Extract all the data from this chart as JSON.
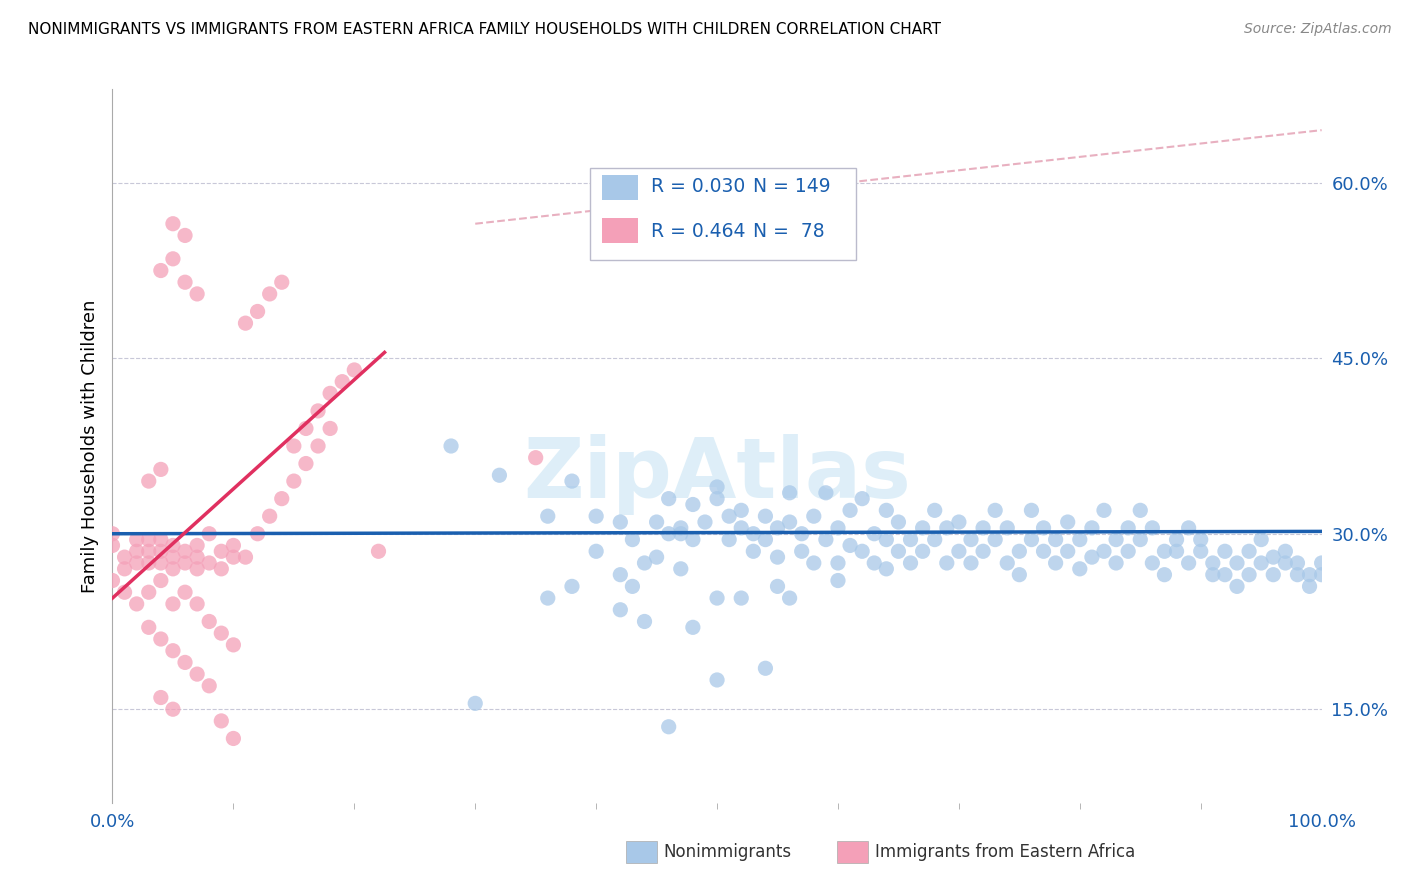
{
  "title": "NONIMMIGRANTS VS IMMIGRANTS FROM EASTERN AFRICA FAMILY HOUSEHOLDS WITH CHILDREN CORRELATION CHART",
  "source": "Source: ZipAtlas.com",
  "ylabel": "Family Households with Children",
  "yticks": [
    "15.0%",
    "30.0%",
    "45.0%",
    "60.0%"
  ],
  "ytick_vals": [
    0.15,
    0.3,
    0.45,
    0.6
  ],
  "xlim": [
    0.0,
    1.0
  ],
  "ylim": [
    0.07,
    0.68
  ],
  "legend_blue_r": "0.030",
  "legend_blue_n": "149",
  "legend_pink_r": "0.464",
  "legend_pink_n": "78",
  "legend_blue_label": "Nonimmigrants",
  "legend_pink_label": "Immigrants from Eastern Africa",
  "blue_color": "#a8c8e8",
  "pink_color": "#f4a0b8",
  "blue_line_color": "#1a5faf",
  "pink_line_color": "#e03060",
  "diag_line_color": "#e8b0c0",
  "r_n_color": "#1a5faf",
  "watermark": "ZipAtlas",
  "blue_dots": [
    [
      0.28,
      0.375
    ],
    [
      0.32,
      0.35
    ],
    [
      0.36,
      0.315
    ],
    [
      0.38,
      0.345
    ],
    [
      0.4,
      0.315
    ],
    [
      0.4,
      0.285
    ],
    [
      0.42,
      0.31
    ],
    [
      0.42,
      0.265
    ],
    [
      0.43,
      0.295
    ],
    [
      0.44,
      0.275
    ],
    [
      0.45,
      0.31
    ],
    [
      0.45,
      0.28
    ],
    [
      0.46,
      0.33
    ],
    [
      0.46,
      0.3
    ],
    [
      0.47,
      0.27
    ],
    [
      0.47,
      0.305
    ],
    [
      0.48,
      0.325
    ],
    [
      0.48,
      0.295
    ],
    [
      0.49,
      0.31
    ],
    [
      0.5,
      0.34
    ],
    [
      0.5,
      0.33
    ],
    [
      0.51,
      0.315
    ],
    [
      0.51,
      0.295
    ],
    [
      0.52,
      0.305
    ],
    [
      0.52,
      0.32
    ],
    [
      0.53,
      0.285
    ],
    [
      0.53,
      0.3
    ],
    [
      0.54,
      0.315
    ],
    [
      0.54,
      0.295
    ],
    [
      0.55,
      0.305
    ],
    [
      0.55,
      0.28
    ],
    [
      0.56,
      0.335
    ],
    [
      0.56,
      0.31
    ],
    [
      0.57,
      0.285
    ],
    [
      0.57,
      0.3
    ],
    [
      0.58,
      0.315
    ],
    [
      0.58,
      0.275
    ],
    [
      0.59,
      0.295
    ],
    [
      0.59,
      0.335
    ],
    [
      0.6,
      0.305
    ],
    [
      0.6,
      0.275
    ],
    [
      0.61,
      0.32
    ],
    [
      0.61,
      0.29
    ],
    [
      0.62,
      0.285
    ],
    [
      0.62,
      0.33
    ],
    [
      0.63,
      0.3
    ],
    [
      0.63,
      0.275
    ],
    [
      0.64,
      0.32
    ],
    [
      0.64,
      0.295
    ],
    [
      0.65,
      0.285
    ],
    [
      0.65,
      0.31
    ],
    [
      0.66,
      0.295
    ],
    [
      0.66,
      0.275
    ],
    [
      0.67,
      0.305
    ],
    [
      0.67,
      0.285
    ],
    [
      0.68,
      0.32
    ],
    [
      0.68,
      0.295
    ],
    [
      0.69,
      0.275
    ],
    [
      0.69,
      0.305
    ],
    [
      0.7,
      0.285
    ],
    [
      0.7,
      0.31
    ],
    [
      0.71,
      0.295
    ],
    [
      0.71,
      0.275
    ],
    [
      0.72,
      0.305
    ],
    [
      0.72,
      0.285
    ],
    [
      0.73,
      0.32
    ],
    [
      0.73,
      0.295
    ],
    [
      0.74,
      0.275
    ],
    [
      0.74,
      0.305
    ],
    [
      0.75,
      0.285
    ],
    [
      0.75,
      0.265
    ],
    [
      0.76,
      0.295
    ],
    [
      0.76,
      0.32
    ],
    [
      0.77,
      0.285
    ],
    [
      0.77,
      0.305
    ],
    [
      0.78,
      0.275
    ],
    [
      0.78,
      0.295
    ],
    [
      0.79,
      0.31
    ],
    [
      0.79,
      0.285
    ],
    [
      0.8,
      0.27
    ],
    [
      0.8,
      0.295
    ],
    [
      0.81,
      0.305
    ],
    [
      0.81,
      0.28
    ],
    [
      0.82,
      0.32
    ],
    [
      0.82,
      0.285
    ],
    [
      0.83,
      0.295
    ],
    [
      0.83,
      0.275
    ],
    [
      0.84,
      0.305
    ],
    [
      0.84,
      0.285
    ],
    [
      0.85,
      0.32
    ],
    [
      0.85,
      0.295
    ],
    [
      0.86,
      0.275
    ],
    [
      0.86,
      0.305
    ],
    [
      0.87,
      0.285
    ],
    [
      0.87,
      0.265
    ],
    [
      0.88,
      0.295
    ],
    [
      0.88,
      0.285
    ],
    [
      0.89,
      0.305
    ],
    [
      0.89,
      0.275
    ],
    [
      0.9,
      0.285
    ],
    [
      0.9,
      0.295
    ],
    [
      0.91,
      0.275
    ],
    [
      0.91,
      0.265
    ],
    [
      0.92,
      0.285
    ],
    [
      0.92,
      0.265
    ],
    [
      0.93,
      0.275
    ],
    [
      0.93,
      0.255
    ],
    [
      0.94,
      0.265
    ],
    [
      0.94,
      0.285
    ],
    [
      0.95,
      0.275
    ],
    [
      0.95,
      0.295
    ],
    [
      0.96,
      0.265
    ],
    [
      0.96,
      0.28
    ],
    [
      0.97,
      0.275
    ],
    [
      0.97,
      0.285
    ],
    [
      0.98,
      0.265
    ],
    [
      0.98,
      0.275
    ],
    [
      0.99,
      0.265
    ],
    [
      0.99,
      0.255
    ],
    [
      1.0,
      0.275
    ],
    [
      1.0,
      0.265
    ],
    [
      0.38,
      0.255
    ],
    [
      0.43,
      0.255
    ],
    [
      0.5,
      0.245
    ],
    [
      0.52,
      0.245
    ],
    [
      0.55,
      0.255
    ],
    [
      0.56,
      0.245
    ],
    [
      0.6,
      0.26
    ],
    [
      0.44,
      0.225
    ],
    [
      0.3,
      0.155
    ],
    [
      0.54,
      0.185
    ],
    [
      0.64,
      0.27
    ],
    [
      0.36,
      0.245
    ],
    [
      0.47,
      0.3
    ],
    [
      0.42,
      0.235
    ],
    [
      0.48,
      0.22
    ],
    [
      0.5,
      0.175
    ],
    [
      0.46,
      0.135
    ]
  ],
  "pink_dots": [
    [
      0.0,
      0.29
    ],
    [
      0.0,
      0.3
    ],
    [
      0.01,
      0.28
    ],
    [
      0.01,
      0.27
    ],
    [
      0.02,
      0.285
    ],
    [
      0.02,
      0.295
    ],
    [
      0.02,
      0.275
    ],
    [
      0.03,
      0.285
    ],
    [
      0.03,
      0.275
    ],
    [
      0.03,
      0.295
    ],
    [
      0.04,
      0.275
    ],
    [
      0.04,
      0.285
    ],
    [
      0.04,
      0.295
    ],
    [
      0.05,
      0.28
    ],
    [
      0.05,
      0.27
    ],
    [
      0.05,
      0.29
    ],
    [
      0.06,
      0.285
    ],
    [
      0.06,
      0.275
    ],
    [
      0.07,
      0.28
    ],
    [
      0.07,
      0.29
    ],
    [
      0.07,
      0.27
    ],
    [
      0.08,
      0.3
    ],
    [
      0.08,
      0.275
    ],
    [
      0.09,
      0.285
    ],
    [
      0.09,
      0.27
    ],
    [
      0.1,
      0.28
    ],
    [
      0.1,
      0.29
    ],
    [
      0.0,
      0.26
    ],
    [
      0.01,
      0.25
    ],
    [
      0.02,
      0.24
    ],
    [
      0.03,
      0.25
    ],
    [
      0.04,
      0.26
    ],
    [
      0.05,
      0.24
    ],
    [
      0.06,
      0.25
    ],
    [
      0.07,
      0.24
    ],
    [
      0.08,
      0.225
    ],
    [
      0.09,
      0.215
    ],
    [
      0.1,
      0.205
    ],
    [
      0.03,
      0.22
    ],
    [
      0.04,
      0.21
    ],
    [
      0.05,
      0.2
    ],
    [
      0.06,
      0.19
    ],
    [
      0.07,
      0.18
    ],
    [
      0.08,
      0.17
    ],
    [
      0.04,
      0.16
    ],
    [
      0.05,
      0.15
    ],
    [
      0.09,
      0.14
    ],
    [
      0.1,
      0.125
    ],
    [
      0.11,
      0.28
    ],
    [
      0.12,
      0.3
    ],
    [
      0.13,
      0.315
    ],
    [
      0.14,
      0.33
    ],
    [
      0.15,
      0.345
    ],
    [
      0.15,
      0.375
    ],
    [
      0.16,
      0.39
    ],
    [
      0.16,
      0.36
    ],
    [
      0.17,
      0.405
    ],
    [
      0.17,
      0.375
    ],
    [
      0.18,
      0.42
    ],
    [
      0.18,
      0.39
    ],
    [
      0.19,
      0.43
    ],
    [
      0.2,
      0.44
    ],
    [
      0.11,
      0.48
    ],
    [
      0.12,
      0.49
    ],
    [
      0.13,
      0.505
    ],
    [
      0.14,
      0.515
    ],
    [
      0.04,
      0.525
    ],
    [
      0.05,
      0.535
    ],
    [
      0.06,
      0.515
    ],
    [
      0.07,
      0.505
    ],
    [
      0.05,
      0.565
    ],
    [
      0.06,
      0.555
    ],
    [
      0.22,
      0.285
    ],
    [
      0.35,
      0.365
    ],
    [
      0.03,
      0.345
    ],
    [
      0.04,
      0.355
    ]
  ],
  "blue_line_x": [
    0.0,
    1.0
  ],
  "blue_line_y": [
    0.3,
    0.302
  ],
  "pink_line_x": [
    0.0,
    0.225
  ],
  "pink_line_y": [
    0.245,
    0.455
  ],
  "diag_line_x": [
    0.3,
    1.0
  ],
  "diag_line_y": [
    0.565,
    0.645
  ]
}
